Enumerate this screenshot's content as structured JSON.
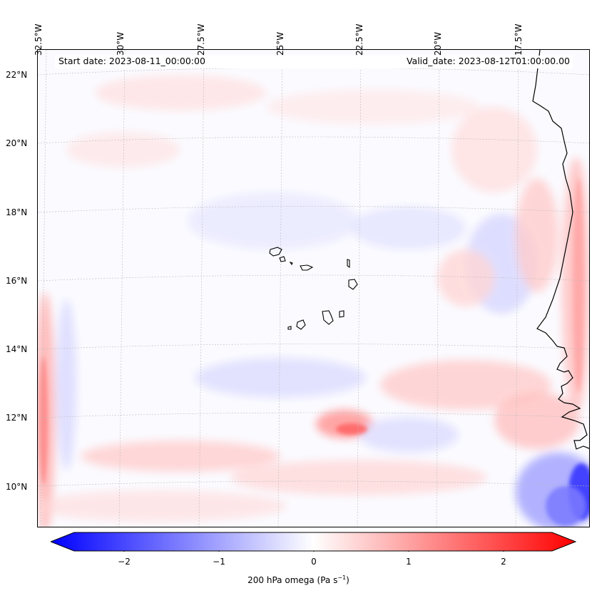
{
  "map": {
    "start_date": "Start date: 2023-08-11_00:00:00",
    "valid_date": "Valid_date: 2023-08-12T01:00:00.00",
    "longitude_labels": [
      "32.5°W",
      "30°W",
      "27.5°W",
      "25°W",
      "22.5°W",
      "20°W",
      "17.5°W"
    ],
    "latitude_labels": [
      "22°N",
      "20°N",
      "18°N",
      "16°N",
      "14°N",
      "12°N",
      "10°N"
    ],
    "field_colors": {
      "positive": "#ff0000",
      "negative": "#0000ff",
      "neutral": "#ffffff"
    }
  },
  "colorbar": {
    "ticks": [
      "−2",
      "−1",
      "0",
      "1",
      "2"
    ],
    "label_main": "200 hPa omega (Pa s",
    "label_sup": "−1",
    "label_end": ")",
    "range": [
      -2.6,
      2.6
    ]
  }
}
